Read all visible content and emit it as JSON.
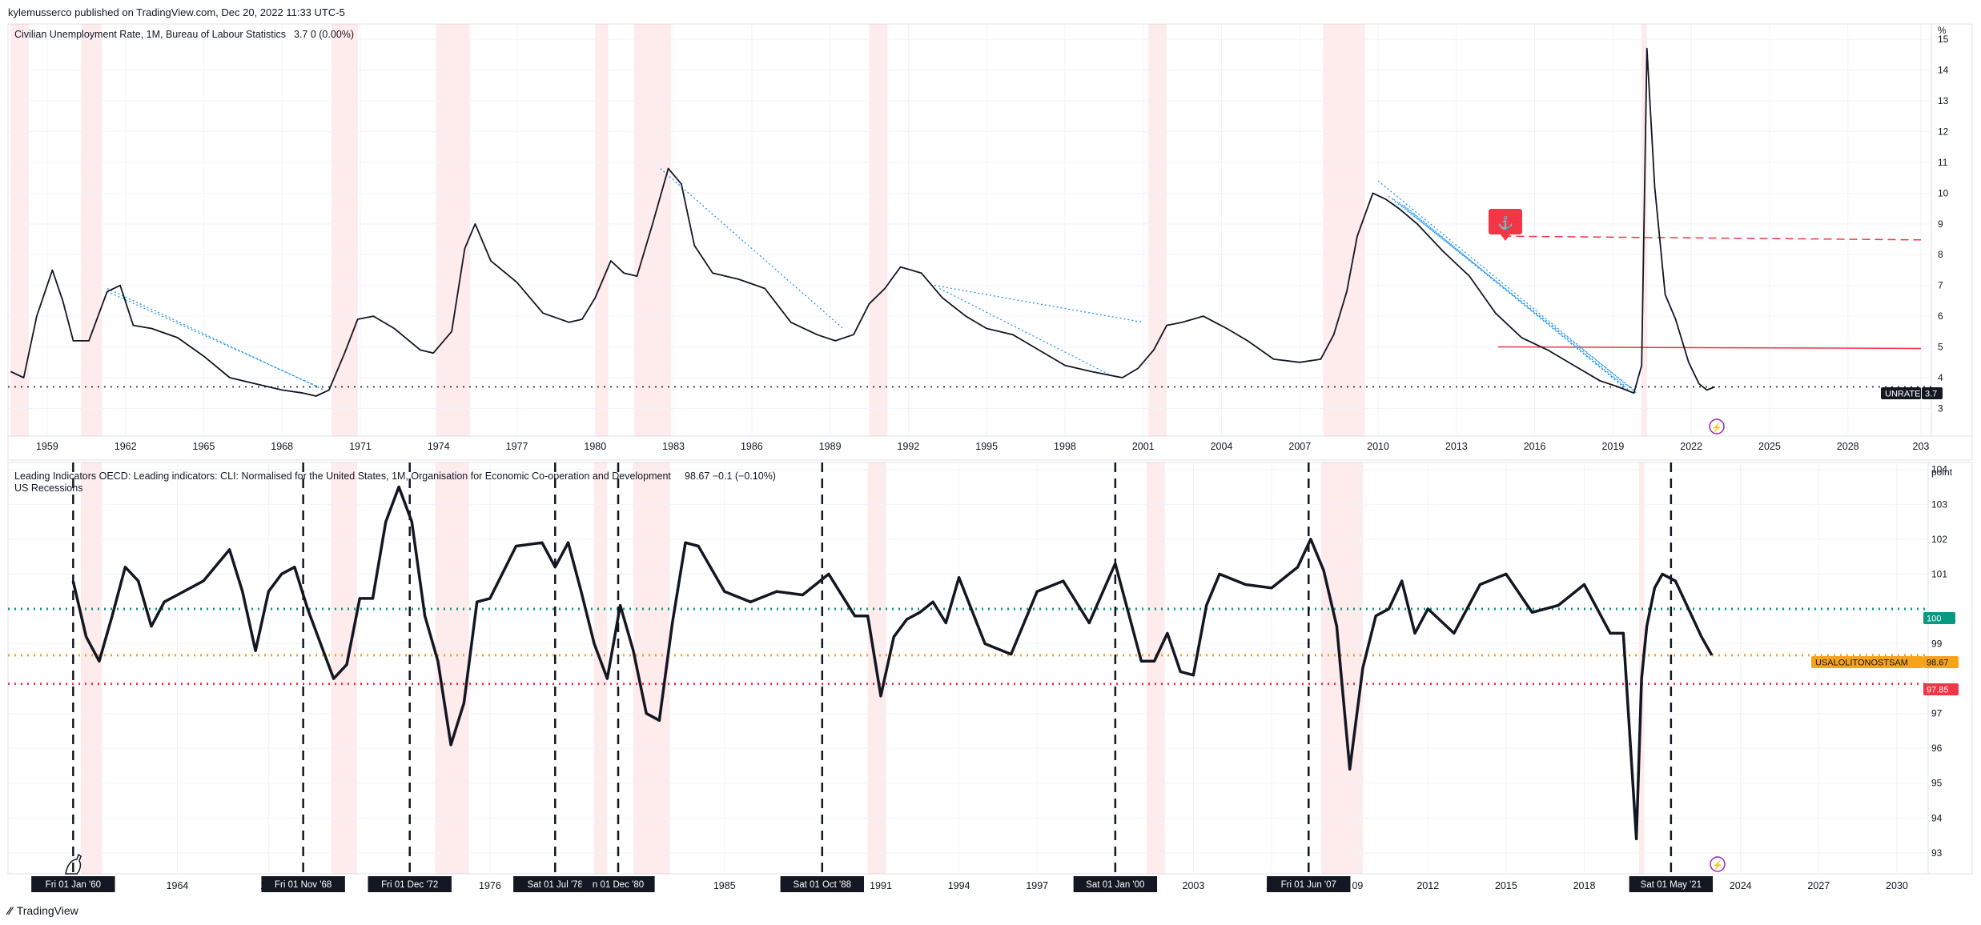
{
  "header": {
    "publisher": "kylemusserco published on TradingView.com, Dec 20, 2022 11:33 UTC-5"
  },
  "footer": {
    "brand": "TradingView"
  },
  "chart_data": [
    {
      "type": "line",
      "title": "Civilian Unemployment Rate, 1M, Bureau of Labour Statistics",
      "legend_value": "3.7  0 (0.00%)",
      "unit_label": "%",
      "series_label": "UNRATE",
      "last_value": 3.7,
      "ylim": [
        2.1,
        15.5
      ],
      "xlim": [
        1957.5,
        2031.2
      ],
      "x_ticks": [
        "1959",
        "1962",
        "1965",
        "1968",
        "1971",
        "1974",
        "1977",
        "1980",
        "1983",
        "1986",
        "1989",
        "1992",
        "1995",
        "1998",
        "2001",
        "2004",
        "2007",
        "2010",
        "2013",
        "2016",
        "2019",
        "2022",
        "2025",
        "2028",
        "203"
      ],
      "y_ticks": [
        "3",
        "4",
        "5",
        "6",
        "7",
        "8",
        "9",
        "10",
        "11",
        "12",
        "13",
        "14",
        "15"
      ],
      "series": [
        {
          "x": [
            1957.6,
            1958.1,
            1958.6,
            1959.2,
            1959.6,
            1960.0,
            1960.6,
            1961.3,
            1961.8,
            1962.3,
            1963.0,
            1964.0,
            1965.0,
            1966.0,
            1967.0,
            1968.0,
            1968.8,
            1969.3,
            1969.8,
            1970.4,
            1970.9,
            1971.5,
            1972.3,
            1973.3,
            1973.8,
            1974.5,
            1975.0,
            1975.4,
            1976.0,
            1977.0,
            1978.0,
            1979.0,
            1979.5,
            1980.0,
            1980.6,
            1981.1,
            1981.6,
            1982.2,
            1982.8,
            1983.3,
            1983.8,
            1984.5,
            1985.5,
            1986.5,
            1987.5,
            1988.5,
            1989.2,
            1989.9,
            1990.5,
            1991.1,
            1991.7,
            1992.5,
            1993.3,
            1994.2,
            1995.0,
            1996.0,
            1997.0,
            1998.0,
            1999.0,
            2000.2,
            2000.8,
            2001.4,
            2001.9,
            2002.5,
            2003.3,
            2004.2,
            2005.0,
            2006.0,
            2007.0,
            2007.8,
            2008.3,
            2008.8,
            2009.2,
            2009.8,
            2010.3,
            2010.8,
            2011.5,
            2012.5,
            2013.5,
            2014.5,
            2015.5,
            2016.5,
            2017.5,
            2018.5,
            2019.2,
            2019.8,
            2020.1,
            2020.3,
            2020.6,
            2021.0,
            2021.4,
            2021.9,
            2022.3,
            2022.6,
            2022.9
          ],
          "y": [
            4.2,
            4.0,
            6.0,
            7.5,
            6.5,
            5.2,
            5.2,
            6.8,
            7.0,
            5.7,
            5.6,
            5.3,
            4.7,
            4.0,
            3.8,
            3.6,
            3.5,
            3.4,
            3.6,
            4.8,
            5.9,
            6.0,
            5.6,
            4.9,
            4.8,
            5.5,
            8.2,
            9.0,
            7.8,
            7.1,
            6.1,
            5.8,
            5.9,
            6.6,
            7.8,
            7.4,
            7.3,
            9.0,
            10.8,
            10.3,
            8.3,
            7.4,
            7.2,
            6.9,
            5.8,
            5.4,
            5.2,
            5.4,
            6.4,
            6.9,
            7.6,
            7.4,
            6.6,
            6.0,
            5.6,
            5.4,
            4.9,
            4.4,
            4.2,
            4.0,
            4.3,
            4.9,
            5.7,
            5.8,
            6.0,
            5.6,
            5.2,
            4.6,
            4.5,
            4.6,
            5.4,
            6.8,
            8.6,
            10.0,
            9.8,
            9.5,
            9.0,
            8.1,
            7.3,
            6.1,
            5.3,
            4.9,
            4.4,
            3.9,
            3.7,
            3.5,
            4.4,
            14.7,
            10.2,
            6.7,
            5.9,
            4.5,
            3.8,
            3.6,
            3.7
          ]
        }
      ],
      "recessions": [
        [
          1957.6,
          1958.3
        ],
        [
          1960.3,
          1961.1
        ],
        [
          1969.9,
          1970.9
        ],
        [
          1973.9,
          1975.2
        ],
        [
          1980.0,
          1980.5
        ],
        [
          1981.5,
          1982.9
        ],
        [
          1990.5,
          1991.2
        ],
        [
          2001.2,
          2001.9
        ],
        [
          2007.9,
          2009.5
        ],
        [
          2020.1,
          2020.3
        ]
      ],
      "horizontal_levels": [
        {
          "value": 3.7,
          "style": "dotted",
          "color": "#131722"
        },
        {
          "value": 5.0,
          "style": "solid",
          "color": "#f23645"
        },
        {
          "value": 8.6,
          "style": "dashed",
          "color": "#f23645"
        }
      ],
      "trend_lines": [
        [
          [
            1961.3,
            6.9
          ],
          [
            1969.6,
            3.6
          ]
        ],
        [
          [
            1961.3,
            6.8
          ],
          [
            1969.4,
            3.7
          ]
        ],
        [
          [
            1982.5,
            10.8
          ],
          [
            1989.5,
            5.6
          ]
        ],
        [
          [
            1993.0,
            7.0
          ],
          [
            2001.0,
            5.8
          ]
        ],
        [
          [
            1993.2,
            6.9
          ],
          [
            1999.7,
            4.1
          ]
        ],
        [
          [
            2010.0,
            10.4
          ],
          [
            2019.9,
            3.5
          ]
        ],
        [
          [
            2010.4,
            9.9
          ],
          [
            2019.8,
            3.6
          ]
        ],
        [
          [
            2010.6,
            9.8
          ],
          [
            2019.6,
            3.6
          ]
        ],
        [
          [
            2010.8,
            9.7
          ],
          [
            2019.5,
            3.7
          ]
        ],
        [
          [
            2011.0,
            9.6
          ],
          [
            2019.4,
            3.7
          ]
        ]
      ]
    },
    {
      "type": "line",
      "title": "Leading Indicators OECD: Leading indicators: CLI: Normalised for the United States, 1M, Organisation for Economic Co-operation and Development",
      "legend_value": "98.67  −0.1 (−0.10%)",
      "subtitle": "US Recessions",
      "unit_label": "point",
      "series_label": "USALOLITONOSTSAM",
      "last_value": 98.67,
      "ylim": [
        92.4,
        104.2
      ],
      "xlim": [
        1957.5,
        2031.2
      ],
      "x_ticks": [
        "1964",
        "196",
        "1976",
        "1985",
        "1991",
        "1994",
        "1997",
        "2003",
        "20",
        "09",
        "2012",
        "2015",
        "2018",
        "2024",
        "2027",
        "2030"
      ],
      "y_ticks": [
        "93",
        "94",
        "95",
        "96",
        "97",
        "99",
        "101",
        "102",
        "103",
        "104"
      ],
      "series": [
        {
          "x": [
            1960.0,
            1960.5,
            1961.0,
            1961.5,
            1962.0,
            1962.5,
            1963.0,
            1963.5,
            1964.0,
            1965.0,
            1966.0,
            1966.5,
            1967.0,
            1967.5,
            1968.0,
            1968.5,
            1969.0,
            1969.5,
            1970.0,
            1970.5,
            1971.0,
            1971.5,
            1972.0,
            1972.5,
            1973.0,
            1973.5,
            1974.0,
            1974.5,
            1975.0,
            1975.5,
            1976.0,
            1977.0,
            1978.0,
            1978.5,
            1979.0,
            1979.5,
            1980.0,
            1980.5,
            1981.0,
            1981.5,
            1982.0,
            1982.5,
            1983.0,
            1983.5,
            1984.0,
            1985.0,
            1986.0,
            1987.0,
            1988.0,
            1989.0,
            1990.0,
            1990.5,
            1991.0,
            1991.5,
            1992.0,
            1992.5,
            1993.0,
            1993.5,
            1994.0,
            1995.0,
            1996.0,
            1997.0,
            1998.0,
            1999.0,
            2000.0,
            2000.5,
            2001.0,
            2001.5,
            2002.0,
            2002.5,
            2003.0,
            2003.5,
            2004.0,
            2005.0,
            2006.0,
            2007.0,
            2007.5,
            2008.0,
            2008.5,
            2009.0,
            2009.5,
            2010.0,
            2010.5,
            2011.0,
            2011.5,
            2012.0,
            2013.0,
            2014.0,
            2015.0,
            2016.0,
            2017.0,
            2018.0,
            2019.0,
            2019.5,
            2020.0,
            2020.2,
            2020.4,
            2020.7,
            2021.0,
            2021.5,
            2022.0,
            2022.5,
            2022.9
          ],
          "y": [
            100.8,
            99.2,
            98.5,
            99.8,
            101.2,
            100.8,
            99.5,
            100.2,
            100.4,
            100.8,
            101.7,
            100.5,
            98.8,
            100.5,
            101.0,
            101.2,
            100.0,
            99.0,
            98.0,
            98.4,
            100.3,
            100.3,
            102.5,
            103.5,
            102.5,
            99.8,
            98.5,
            96.1,
            97.3,
            100.2,
            100.3,
            101.8,
            101.9,
            101.2,
            101.9,
            100.5,
            99.0,
            98.0,
            100.1,
            98.8,
            97.0,
            96.8,
            99.6,
            101.9,
            101.8,
            100.5,
            100.2,
            100.5,
            100.4,
            101.0,
            99.8,
            99.8,
            97.5,
            99.2,
            99.7,
            99.9,
            100.2,
            99.6,
            100.9,
            99.0,
            98.7,
            100.5,
            100.8,
            99.6,
            101.3,
            99.9,
            98.5,
            98.5,
            99.3,
            98.2,
            98.1,
            100.1,
            101.0,
            100.7,
            100.6,
            101.2,
            102.0,
            101.1,
            99.5,
            95.4,
            98.3,
            99.8,
            100.0,
            100.8,
            99.3,
            100.0,
            99.3,
            100.7,
            101.0,
            99.9,
            100.1,
            100.7,
            99.3,
            99.3,
            93.4,
            98.0,
            99.5,
            100.6,
            101.0,
            100.8,
            100.0,
            99.2,
            98.67
          ]
        }
      ],
      "recessions": [
        [
          1960.3,
          1961.1
        ],
        [
          1969.9,
          1970.9
        ],
        [
          1973.9,
          1975.2
        ],
        [
          1980.0,
          1980.5
        ],
        [
          1981.5,
          1982.9
        ],
        [
          1990.5,
          1991.2
        ],
        [
          2001.2,
          2001.9
        ],
        [
          2007.9,
          2009.5
        ],
        [
          2020.1,
          2020.3
        ]
      ],
      "horizontal_levels": [
        {
          "value": 100,
          "label": "100",
          "style": "dotted",
          "color": "#089981"
        },
        {
          "value": 98.67,
          "label": "98.67",
          "style": "dotted",
          "color": "#f7a21b"
        },
        {
          "value": 97.85,
          "label": "97.85",
          "style": "dotted",
          "color": "#f23645"
        }
      ],
      "vertical_markers": [
        {
          "x": 1960.0,
          "label": "Fri 01 Jan '60"
        },
        {
          "x": 1968.83,
          "label": "Fri 01 Nov '68"
        },
        {
          "x": 1972.92,
          "label": "Fri 01 Dec '72"
        },
        {
          "x": 1978.5,
          "label": "Sat 01 Jul '78"
        },
        {
          "x": 1980.92,
          "label": "n 01 Dec '80"
        },
        {
          "x": 1988.75,
          "label": "Sat 01 Oct '88"
        },
        {
          "x": 2000.0,
          "label": "Sat 01 Jan '00"
        },
        {
          "x": 2007.42,
          "label": "Fri 01 Jun '07"
        },
        {
          "x": 2021.33,
          "label": "Sat 01 May '21"
        }
      ]
    }
  ]
}
